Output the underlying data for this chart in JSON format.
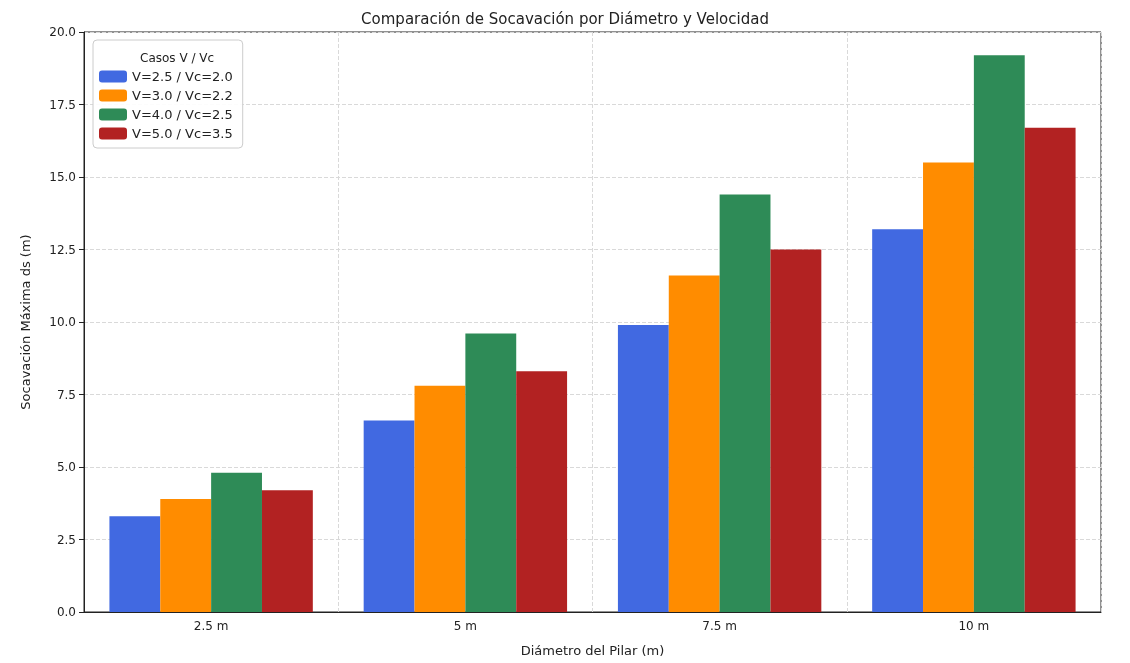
{
  "chart_data": {
    "type": "bar",
    "title": "Comparación de Socavación por Diámetro y Velocidad",
    "xlabel": "Diámetro del Pilar (m)",
    "ylabel": "Socavación Máxima ds (m)",
    "legend_title": "Casos V / Vc",
    "categories": [
      "2.5 m",
      "5 m",
      "7.5 m",
      "10 m"
    ],
    "series": [
      {
        "name": "V=2.5 / Vc=2.0",
        "color": "#4169e1",
        "values": [
          3.3,
          6.6,
          9.9,
          13.2
        ]
      },
      {
        "name": "V=3.0 / Vc=2.2",
        "color": "#ff8c00",
        "values": [
          3.9,
          7.8,
          11.6,
          15.5
        ]
      },
      {
        "name": "V=4.0 / Vc=2.5",
        "color": "#2e8b57",
        "values": [
          4.8,
          9.6,
          14.4,
          19.2
        ]
      },
      {
        "name": "V=5.0 / Vc=3.5",
        "color": "#b22222",
        "values": [
          4.2,
          8.3,
          12.5,
          16.7
        ]
      }
    ],
    "ylim": [
      0,
      20
    ],
    "yticks": [
      {
        "value": 0,
        "label": "0.0"
      },
      {
        "value": 2.5,
        "label": "2.5"
      },
      {
        "value": 5,
        "label": "5.0"
      },
      {
        "value": 7.5,
        "label": "7.5"
      },
      {
        "value": 10,
        "label": "10.0"
      },
      {
        "value": 12.5,
        "label": "12.5"
      },
      {
        "value": 15,
        "label": "15.0"
      },
      {
        "value": 17.5,
        "label": "17.5"
      },
      {
        "value": 20,
        "label": "20.0"
      }
    ],
    "grid": true,
    "legend": "top left"
  }
}
